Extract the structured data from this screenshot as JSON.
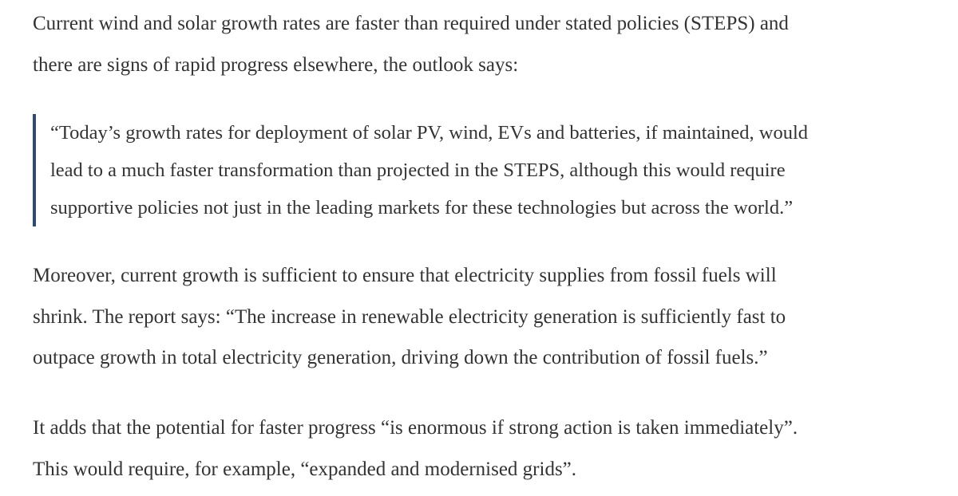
{
  "paragraphs": [
    {
      "lines": [
        "Current wind and solar growth rates are faster than required under stated policies (STEPS) and",
        "there are signs of rapid progress elsewhere, the outlook says:"
      ]
    },
    {
      "lines": [
        "Moreover, current growth is sufficient to ensure that electricity supplies from fossil fuels will",
        "shrink. The report says: “The increase in renewable electricity generation is sufficiently fast to",
        "outpace growth in total electricity generation, driving down the contribution of fossil fuels.”"
      ]
    },
    {
      "lines": [
        "It adds that the potential for faster progress “is enormous if strong action is taken immediately”.",
        "This would require, for example, “expanded and modernised grids”."
      ]
    }
  ],
  "blockquote": {
    "lines": [
      "“Today’s growth rates for deployment of solar PV, wind, EVs and batteries, if maintained, would",
      "lead to a much faster transformation than projected in the STEPS, although this would require",
      "supportive policies not just in the leading markets for these technologies but across the world.”"
    ]
  }
}
